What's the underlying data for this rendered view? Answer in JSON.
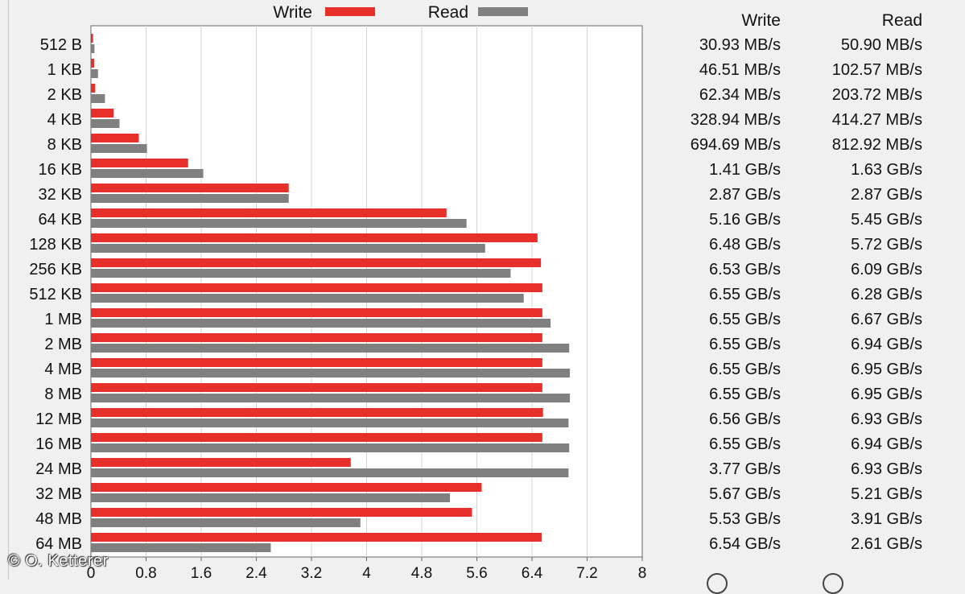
{
  "chart_data": {
    "type": "bar",
    "orientation": "horizontal",
    "categories": [
      "512 B",
      "1 KB",
      "2 KB",
      "4 KB",
      "8 KB",
      "16 KB",
      "32 KB",
      "64 KB",
      "128 KB",
      "256 KB",
      "512 KB",
      "1 MB",
      "2 MB",
      "4 MB",
      "8 MB",
      "12 MB",
      "16 MB",
      "24 MB",
      "32 MB",
      "48 MB",
      "64 MB"
    ],
    "series": [
      {
        "name": "Write",
        "color": "#e8302a",
        "values": [
          0.03093,
          0.04651,
          0.06234,
          0.32894,
          0.69469,
          1.41,
          2.87,
          5.16,
          6.48,
          6.53,
          6.55,
          6.55,
          6.55,
          6.55,
          6.55,
          6.56,
          6.55,
          3.77,
          5.67,
          5.53,
          6.54
        ]
      },
      {
        "name": "Read",
        "color": "#808080",
        "values": [
          0.0509,
          0.10257,
          0.20372,
          0.41427,
          0.81292,
          1.63,
          2.87,
          5.45,
          5.72,
          6.09,
          6.28,
          6.67,
          6.94,
          6.95,
          6.95,
          6.93,
          6.94,
          6.93,
          5.21,
          3.91,
          2.61
        ]
      }
    ],
    "xlim": [
      0,
      8
    ],
    "xticks": [
      "0",
      "0.8",
      "1.6",
      "2.4",
      "3.2",
      "4",
      "4.8",
      "5.6",
      "6.4",
      "7.2",
      "8"
    ],
    "grid": true,
    "legend": "top",
    "xlabel": "",
    "ylabel": "",
    "title": ""
  },
  "table": {
    "header_write": "Write",
    "header_read": "Read",
    "write": [
      "30.93 MB/s",
      "46.51 MB/s",
      "62.34 MB/s",
      "328.94 MB/s",
      "694.69 MB/s",
      "1.41 GB/s",
      "2.87 GB/s",
      "5.16 GB/s",
      "6.48 GB/s",
      "6.53 GB/s",
      "6.55 GB/s",
      "6.55 GB/s",
      "6.55 GB/s",
      "6.55 GB/s",
      "6.55 GB/s",
      "6.56 GB/s",
      "6.55 GB/s",
      "3.77 GB/s",
      "5.67 GB/s",
      "5.53 GB/s",
      "6.54 GB/s"
    ],
    "read": [
      "50.90 MB/s",
      "102.57 MB/s",
      "203.72 MB/s",
      "414.27 MB/s",
      "812.92 MB/s",
      "1.63 GB/s",
      "2.87 GB/s",
      "5.45 GB/s",
      "5.72 GB/s",
      "6.09 GB/s",
      "6.28 GB/s",
      "6.67 GB/s",
      "6.94 GB/s",
      "6.95 GB/s",
      "6.95 GB/s",
      "6.93 GB/s",
      "6.94 GB/s",
      "6.93 GB/s",
      "5.21 GB/s",
      "3.91 GB/s",
      "2.61 GB/s"
    ]
  },
  "watermark": "© O. Ketterer"
}
